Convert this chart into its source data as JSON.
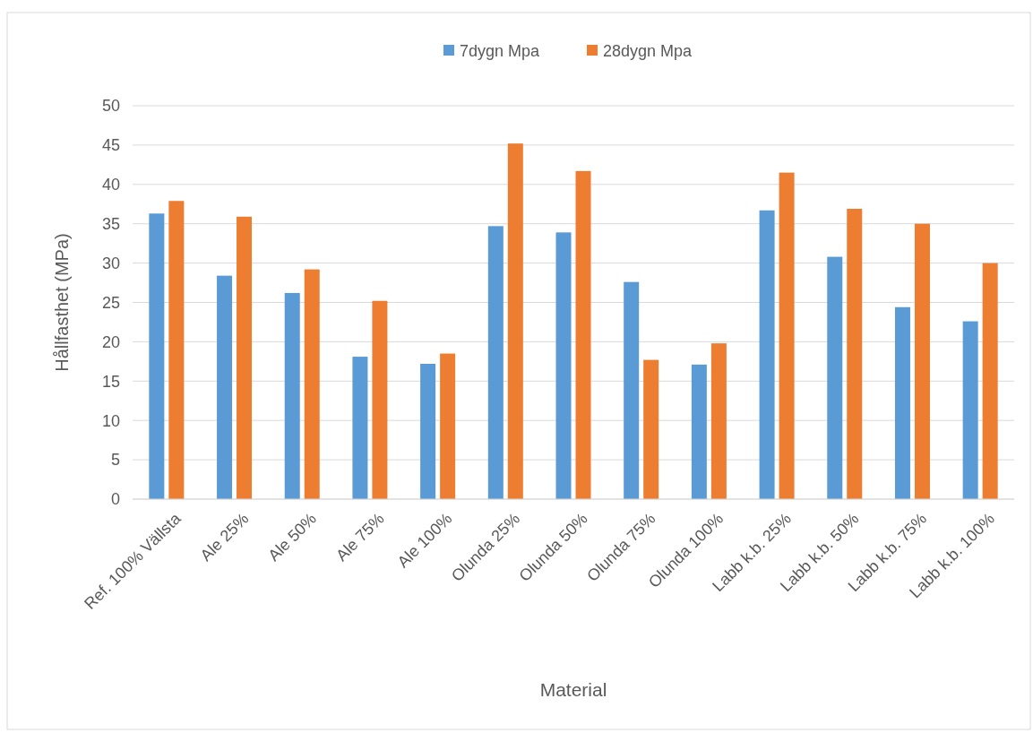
{
  "chart_data": {
    "type": "bar",
    "xlabel": "Material",
    "ylabel": "Hållfasthet (MPa)",
    "categories": [
      "Ref. 100% Vällsta",
      "Ale 25%",
      "Ale 50%",
      "Ale 75%",
      "Ale 100%",
      "Olunda 25%",
      "Olunda 50%",
      "Olunda 75%",
      "Olunda 100%",
      "Labb k.b. 25%",
      "Labb k.b. 50%",
      "Labb k.b. 75%",
      "Labb k.b. 100%"
    ],
    "series": [
      {
        "name": "7dygn Mpa",
        "color": "#5b9bd5",
        "values": [
          36.3,
          28.4,
          26.2,
          18.1,
          17.2,
          34.7,
          33.9,
          27.6,
          17.1,
          36.7,
          30.8,
          24.4,
          22.6
        ]
      },
      {
        "name": "28dygn Mpa",
        "color": "#ed7d31",
        "values": [
          37.9,
          35.9,
          29.2,
          25.2,
          18.5,
          45.2,
          41.7,
          17.7,
          19.8,
          41.5,
          36.9,
          35.0,
          30.0
        ]
      }
    ],
    "ylim": [
      0,
      50
    ],
    "yticks": [
      0,
      5,
      10,
      15,
      20,
      25,
      30,
      35,
      40,
      45,
      50
    ],
    "grid": "y",
    "legend": "top"
  }
}
